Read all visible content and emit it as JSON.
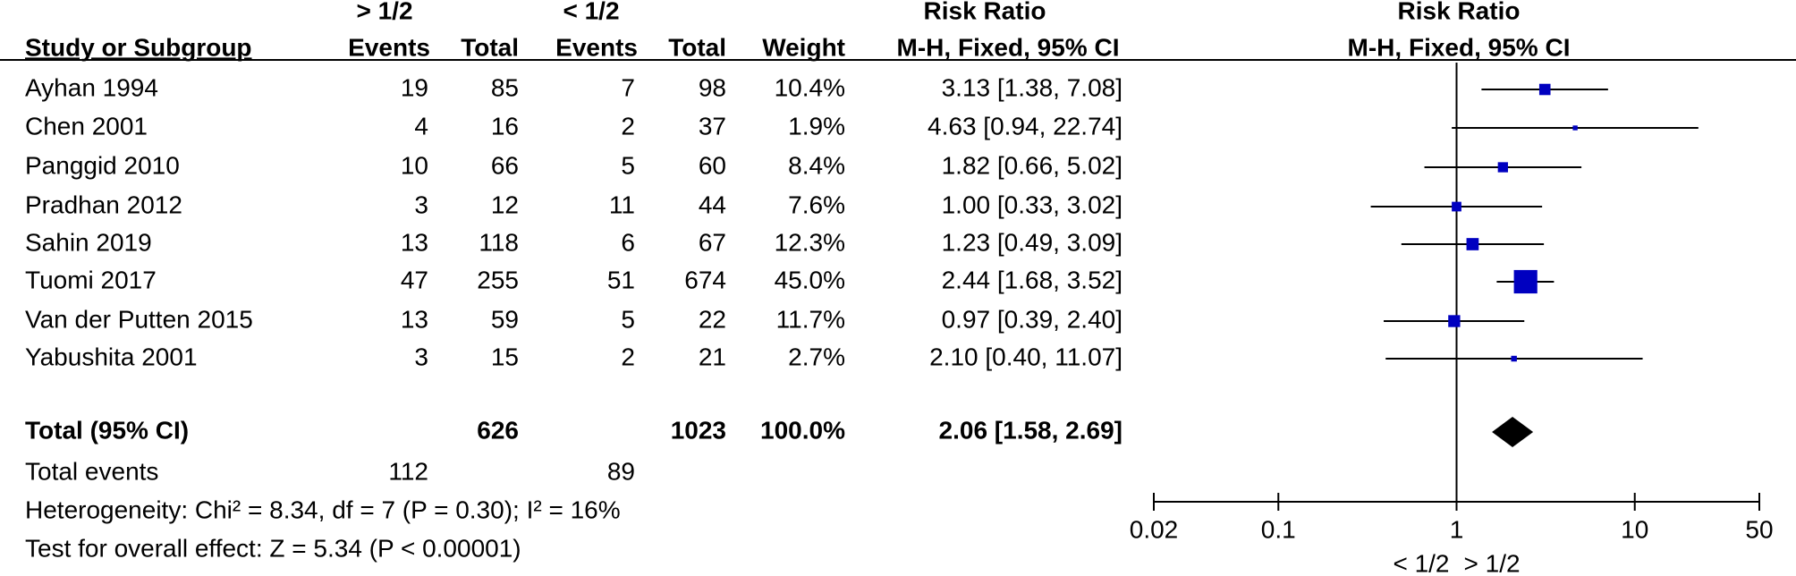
{
  "chart_data": {
    "type": "forest",
    "group_headers": [
      "> 1/2",
      "< 1/2"
    ],
    "column_headers": [
      "Study or Subgroup",
      "Events",
      "Total",
      "Events",
      "Total",
      "Weight"
    ],
    "table_effect_title": "Risk Ratio",
    "table_effect_subtitle": "M-H, Fixed, 95% CI",
    "plot_title": "Risk Ratio",
    "plot_subtitle": "M-H, Fixed, 95% CI",
    "color": "#0000c0",
    "studies": [
      {
        "name": "Ayhan 1994",
        "events1": 19,
        "total1": 85,
        "events2": 7,
        "total2": 98,
        "weight": 10.4,
        "weight_label": "10.4%",
        "rr": 3.13,
        "lower": 1.38,
        "upper": 7.08,
        "ci_label": "3.13 [1.38, 7.08]"
      },
      {
        "name": "Chen 2001",
        "events1": 4,
        "total1": 16,
        "events2": 2,
        "total2": 37,
        "weight": 1.9,
        "weight_label": "1.9%",
        "rr": 4.63,
        "lower": 0.94,
        "upper": 22.74,
        "ci_label": "4.63 [0.94, 22.74]"
      },
      {
        "name": "Panggid 2010",
        "events1": 10,
        "total1": 66,
        "events2": 5,
        "total2": 60,
        "weight": 8.4,
        "weight_label": "8.4%",
        "rr": 1.82,
        "lower": 0.66,
        "upper": 5.02,
        "ci_label": "1.82 [0.66, 5.02]"
      },
      {
        "name": "Pradhan 2012",
        "events1": 3,
        "total1": 12,
        "events2": 11,
        "total2": 44,
        "weight": 7.6,
        "weight_label": "7.6%",
        "rr": 1.0,
        "lower": 0.33,
        "upper": 3.02,
        "ci_label": "1.00 [0.33, 3.02]"
      },
      {
        "name": "Sahin 2019",
        "events1": 13,
        "total1": 118,
        "events2": 6,
        "total2": 67,
        "weight": 12.3,
        "weight_label": "12.3%",
        "rr": 1.23,
        "lower": 0.49,
        "upper": 3.09,
        "ci_label": "1.23 [0.49, 3.09]"
      },
      {
        "name": "Tuomi 2017",
        "events1": 47,
        "total1": 255,
        "events2": 51,
        "total2": 674,
        "weight": 45.0,
        "weight_label": "45.0%",
        "rr": 2.44,
        "lower": 1.68,
        "upper": 3.52,
        "ci_label": "2.44 [1.68, 3.52]"
      },
      {
        "name": "Van der Putten 2015",
        "events1": 13,
        "total1": 59,
        "events2": 5,
        "total2": 22,
        "weight": 11.7,
        "weight_label": "11.7%",
        "rr": 0.97,
        "lower": 0.39,
        "upper": 2.4,
        "ci_label": "0.97 [0.39, 2.40]"
      },
      {
        "name": "Yabushita 2001",
        "events1": 3,
        "total1": 15,
        "events2": 2,
        "total2": 21,
        "weight": 2.7,
        "weight_label": "2.7%",
        "rr": 2.1,
        "lower": 0.4,
        "upper": 11.07,
        "ci_label": "2.10 [0.40, 11.07]"
      }
    ],
    "total": {
      "name": "Total (95% CI)",
      "total1": 626,
      "total2": 1023,
      "weight": 100.0,
      "weight_label": "100.0%",
      "rr": 2.06,
      "lower": 1.58,
      "upper": 2.69,
      "ci_label": "2.06 [1.58, 2.69]"
    },
    "total_events": {
      "label": "Total events",
      "events1": 112,
      "events2": 89
    },
    "heterogeneity": "Heterogeneity: Chi² = 8.34, df = 7 (P = 0.30); I² = 16%",
    "overall_effect": "Test for overall effect: Z = 5.34 (P < 0.00001)",
    "xscale": "log",
    "xlim": [
      0.02,
      50
    ],
    "xticks": [
      0.02,
      0.1,
      1,
      10,
      50
    ],
    "favours": [
      "< 1/2",
      "> 1/2"
    ]
  }
}
